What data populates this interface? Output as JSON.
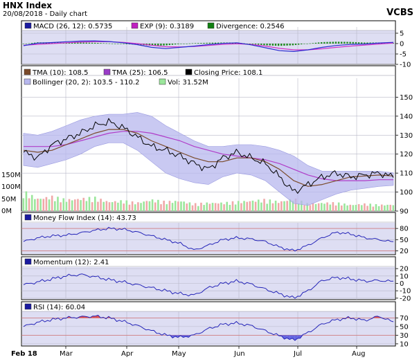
{
  "header": {
    "title": "HNX Index",
    "subtitle": "20/08/2018 - Daily chart",
    "brand": "VCBS"
  },
  "x_labels": [
    "Feb 18",
    "Mar",
    "Apr",
    "May",
    "Jun",
    "Jul",
    "Aug"
  ],
  "colors": {
    "panel_bg": "#dedef3",
    "grid": "#b8b8c8",
    "band": "#b7b7ee",
    "price": "#000000",
    "tma10": "#7a4a2a",
    "tma25": "#b03cc8",
    "macd": "#2a2ad0",
    "exp": "#d030c8",
    "div_pos": "#1e8a1e",
    "div_neg": "#2e7d2e",
    "vol_up": "#9be69b",
    "vol_down": "#f0a8a8",
    "osc": "#2424b8",
    "ob_line": "#d07070",
    "rsi_fill": "#6464e0",
    "rsi_over": "#e05050"
  },
  "chart_data": [
    {
      "type": "line",
      "name": "MACD",
      "legend": [
        {
          "label": "MACD (26, 12): 0.5735",
          "color": "#1a1aa0"
        },
        {
          "label": "EXP (9): 0.3189",
          "color": "#c020c0"
        },
        {
          "label": "Divergence: 0.2546",
          "color": "#108010"
        }
      ],
      "y_ticks": [
        5,
        0,
        -5,
        -10
      ],
      "ylim": [
        -10,
        8
      ],
      "series": [
        {
          "name": "MACD",
          "values": [
            -1.0,
            0.2,
            0.5,
            0.9,
            1.2,
            1.3,
            1.0,
            0.4,
            -0.5,
            -1.8,
            -2.4,
            -1.8,
            -1.2,
            -0.5,
            0.1,
            0.4,
            -0.6,
            -2.0,
            -3.4,
            -3.8,
            -3.0,
            -1.8,
            -0.9,
            -0.4,
            -0.2,
            0.3,
            0.6
          ]
        },
        {
          "name": "EXP",
          "values": [
            -0.8,
            -0.4,
            0.0,
            0.4,
            0.7,
            0.9,
            0.9,
            0.6,
            0.0,
            -0.8,
            -1.5,
            -1.6,
            -1.4,
            -0.9,
            -0.4,
            -0.1,
            -0.4,
            -1.2,
            -2.3,
            -3.0,
            -3.0,
            -2.5,
            -1.8,
            -1.2,
            -0.7,
            -0.2,
            0.3
          ]
        },
        {
          "name": "Divergence",
          "values": [
            -0.2,
            0.6,
            0.5,
            0.5,
            0.5,
            0.4,
            0.1,
            -0.2,
            -0.5,
            -1.0,
            -0.9,
            -0.2,
            0.2,
            0.4,
            0.5,
            0.5,
            -0.2,
            -0.8,
            -1.1,
            -0.8,
            0.0,
            0.7,
            0.9,
            0.8,
            0.5,
            0.5,
            0.3
          ]
        }
      ]
    },
    {
      "type": "line",
      "name": "Price",
      "legend": [
        {
          "label": "TMA (10): 108.5",
          "color": "#7a4a2a"
        },
        {
          "label": "TMA (25): 106.5",
          "color": "#9a3cc8"
        },
        {
          "label": "Closing Price: 108.1",
          "color": "#000000"
        },
        {
          "label": "Bollinger (20, 2): 103.5 - 110.2",
          "color": "#b7b7ee"
        },
        {
          "label": "Vol: 31.52M",
          "color": "#9be69b"
        }
      ],
      "y_ticks": [
        150,
        140,
        130,
        120,
        110,
        100,
        90
      ],
      "ylim": [
        90,
        160
      ],
      "vol_ticks": [
        "150M",
        "100M",
        "50M",
        "0M"
      ],
      "vol_lim": [
        0,
        160
      ],
      "series": [
        {
          "name": "Closing Price",
          "values": [
            121,
            118,
            125,
            128,
            131,
            135,
            137,
            134,
            129,
            124,
            122,
            119,
            115,
            112,
            118,
            121,
            118,
            115,
            108,
            100,
            104,
            108,
            110,
            108,
            109,
            110,
            108.1
          ]
        },
        {
          "name": "TMA (10)",
          "values": [
            122,
            121,
            122,
            125,
            128,
            131,
            133,
            133,
            131,
            127,
            124,
            121,
            118,
            116,
            116,
            118,
            118,
            116,
            112,
            106,
            103,
            104,
            106,
            108,
            108.5,
            109,
            108.5
          ]
        },
        {
          "name": "TMA (25)",
          "values": [
            124,
            124,
            124,
            125,
            127,
            129,
            131,
            132,
            132,
            131,
            129,
            127,
            124,
            122,
            120,
            119,
            118,
            117,
            115,
            112,
            109,
            107,
            106,
            106,
            106,
            106.5,
            106.5
          ]
        },
        {
          "name": "Bollinger Upper",
          "values": [
            131,
            130,
            132,
            135,
            138,
            140,
            141,
            141,
            142,
            140,
            135,
            131,
            127,
            124,
            124,
            125,
            125,
            124,
            122,
            119,
            114,
            111,
            111,
            111,
            111,
            111,
            110.2
          ]
        },
        {
          "name": "Bollinger Lower",
          "values": [
            114,
            113,
            115,
            117,
            120,
            124,
            126,
            126,
            122,
            116,
            110,
            107,
            105,
            104,
            108,
            110,
            109,
            106,
            100,
            94,
            93,
            96,
            99,
            101,
            102,
            103,
            103.5
          ]
        },
        {
          "name": "Vol",
          "values": [
            95,
            60,
            70,
            55,
            60,
            65,
            45,
            50,
            40,
            55,
            45,
            50,
            35,
            40,
            40,
            45,
            50,
            55,
            45,
            60,
            35,
            40,
            40,
            30,
            35,
            30,
            31.52
          ]
        }
      ]
    },
    {
      "type": "line",
      "name": "MFI",
      "legend": [
        {
          "label": "Money Flow Index (14): 43.73",
          "color": "#1a1aa0"
        }
      ],
      "y_ticks": [
        80,
        50,
        20
      ],
      "ylim": [
        10,
        95
      ],
      "series": [
        {
          "name": "Money Flow Index",
          "values": [
            45,
            55,
            60,
            62,
            68,
            75,
            80,
            78,
            70,
            60,
            50,
            40,
            22,
            35,
            50,
            55,
            52,
            45,
            30,
            20,
            35,
            55,
            70,
            65,
            55,
            50,
            43.73
          ]
        }
      ]
    },
    {
      "type": "line",
      "name": "Momentum",
      "legend": [
        {
          "label": "Momentum (12): 2.41",
          "color": "#1a1aa0"
        }
      ],
      "y_ticks": [
        20,
        10,
        0,
        -10,
        -20
      ],
      "ylim": [
        -22,
        22
      ],
      "series": [
        {
          "name": "Momentum",
          "values": [
            -2,
            2,
            6,
            10,
            12,
            9,
            5,
            2,
            -2,
            -6,
            -10,
            -14,
            -16,
            -6,
            0,
            3,
            -1,
            -8,
            -14,
            -20,
            -10,
            4,
            8,
            6,
            3,
            4,
            2.41
          ]
        }
      ]
    },
    {
      "type": "line",
      "name": "RSI",
      "legend": [
        {
          "label": "RSI (14): 60.04",
          "color": "#1a1aa0"
        }
      ],
      "y_ticks": [
        70,
        50,
        30,
        10
      ],
      "ylim": [
        5,
        85
      ],
      "series": [
        {
          "name": "RSI",
          "values": [
            50,
            60,
            66,
            70,
            72,
            74,
            70,
            62,
            52,
            40,
            30,
            25,
            30,
            45,
            55,
            58,
            52,
            40,
            28,
            18,
            36,
            56,
            66,
            70,
            64,
            74,
            60.04
          ]
        }
      ]
    }
  ]
}
